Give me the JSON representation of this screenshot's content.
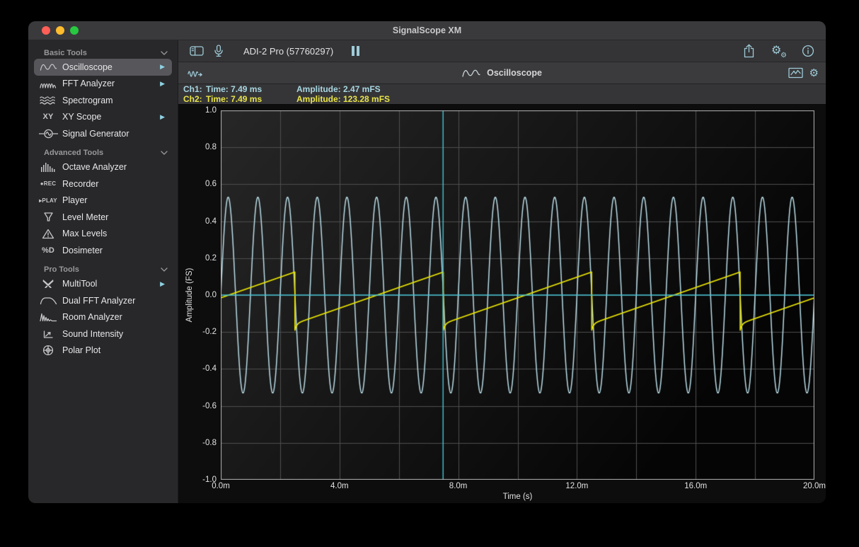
{
  "window": {
    "title": "SignalScope XM",
    "traffic_lights": {
      "close": "#ff5f57",
      "minimize": "#febc2e",
      "zoom": "#28c840"
    }
  },
  "theme": {
    "accent": "#8ed2e3",
    "ch1_color": "#b9dce6",
    "ch2_color": "#e9e400",
    "cursor_color": "#45c4d6"
  },
  "sidebar": {
    "arrow_glyph": "▶",
    "groups": [
      {
        "label": "Basic Tools",
        "items": [
          {
            "label": "Oscilloscope",
            "icon": "sine-wave-icon",
            "selected": true,
            "has_arrow": true
          },
          {
            "label": "FFT Analyzer",
            "icon": "fft-icon",
            "has_arrow": true
          },
          {
            "label": "Spectrogram",
            "icon": "spectrogram-icon"
          },
          {
            "label": "XY Scope",
            "icon": "xy-text-icon",
            "icon_text": "XY",
            "has_arrow": true
          },
          {
            "label": "Signal Generator",
            "icon": "signal-generator-icon"
          }
        ]
      },
      {
        "label": "Advanced Tools",
        "items": [
          {
            "label": "Octave Analyzer",
            "icon": "octave-bars-icon"
          },
          {
            "label": "Recorder",
            "icon": "rec-text-icon",
            "icon_text": "●REC"
          },
          {
            "label": "Player",
            "icon": "play-text-icon",
            "icon_text": "▸PLAY"
          },
          {
            "label": "Level Meter",
            "icon": "level-meter-icon"
          },
          {
            "label": "Max Levels",
            "icon": "warning-triangle-icon"
          },
          {
            "label": "Dosimeter",
            "icon": "dosimeter-text-icon",
            "icon_text": "%D"
          }
        ]
      },
      {
        "label": "Pro Tools",
        "items": [
          {
            "label": "MultiTool",
            "icon": "multitool-icon",
            "has_arrow": true
          },
          {
            "label": "Dual FFT Analyzer",
            "icon": "filter-curve-icon"
          },
          {
            "label": "Room Analyzer",
            "icon": "impulse-response-icon"
          },
          {
            "label": "Sound Intensity",
            "icon": "intensity-axes-icon"
          },
          {
            "label": "Polar Plot",
            "icon": "polar-plot-icon"
          }
        ]
      }
    ]
  },
  "toolbar": {
    "device_label": "ADI-2 Pro (57760297)"
  },
  "tool_header": {
    "title": "Oscilloscope"
  },
  "readout": {
    "ch1": {
      "label": "Ch1:",
      "time": "Time: 7.49 ms",
      "amplitude": "Amplitude: 2.47 mFS",
      "color": "#a9d6e2"
    },
    "ch2": {
      "label": "Ch2:",
      "time": "Time: 7.49 ms",
      "amplitude": "Amplitude: 123.28 mFS",
      "color": "#e9e44a"
    }
  },
  "chart_data": {
    "type": "line",
    "title": "Oscilloscope",
    "xlabel": "Time (s)",
    "ylabel": "Amplitude (FS)",
    "x_unit": "ms",
    "xlim": [
      0,
      20
    ],
    "ylim": [
      -1.0,
      1.0
    ],
    "grid": {
      "on": true,
      "x_step": 2,
      "y_step": 0.2,
      "color": "#4e4e4e"
    },
    "border_color": "#b4b4b4",
    "background": {
      "from": "#272727",
      "to": "#050505"
    },
    "y_ticks": [
      1.0,
      0.8,
      0.6,
      0.4,
      0.2,
      0.0,
      -0.2,
      -0.4,
      -0.6,
      -0.8,
      -1.0
    ],
    "y_tick_labels": [
      "1.0",
      "0.8",
      "0.6",
      "0.4",
      "0.2",
      "0.0",
      "-0.2",
      "-0.4",
      "-0.6",
      "-0.8",
      "-1.0"
    ],
    "x_labels": [
      {
        "t": 0,
        "text": "0.0m"
      },
      {
        "t": 4,
        "text": "4.0m"
      },
      {
        "t": 8,
        "text": "8.0m"
      },
      {
        "t": 12,
        "text": "12.0m"
      },
      {
        "t": 16,
        "text": "16.0m"
      },
      {
        "t": 20,
        "text": "20.0m"
      }
    ],
    "zero_line": {
      "value": 0.0,
      "color": "#45c4d6"
    },
    "cursor": {
      "time_ms": 7.49,
      "color": "#45c4d6"
    },
    "series": [
      {
        "name": "Ch1",
        "waveform": "sine",
        "frequency_hz": 1000,
        "amplitude": 0.53,
        "offset": 0.0,
        "color": "#b9dce6",
        "line_width": 1.5
      },
      {
        "name": "Ch2",
        "waveform": "sawtooth",
        "frequency_hz": 200,
        "max": 0.125,
        "min": -0.155,
        "undershoot": -0.19,
        "first_reset_ms": 2.5,
        "color": "#e9e400",
        "line_width": 1.7
      }
    ]
  }
}
